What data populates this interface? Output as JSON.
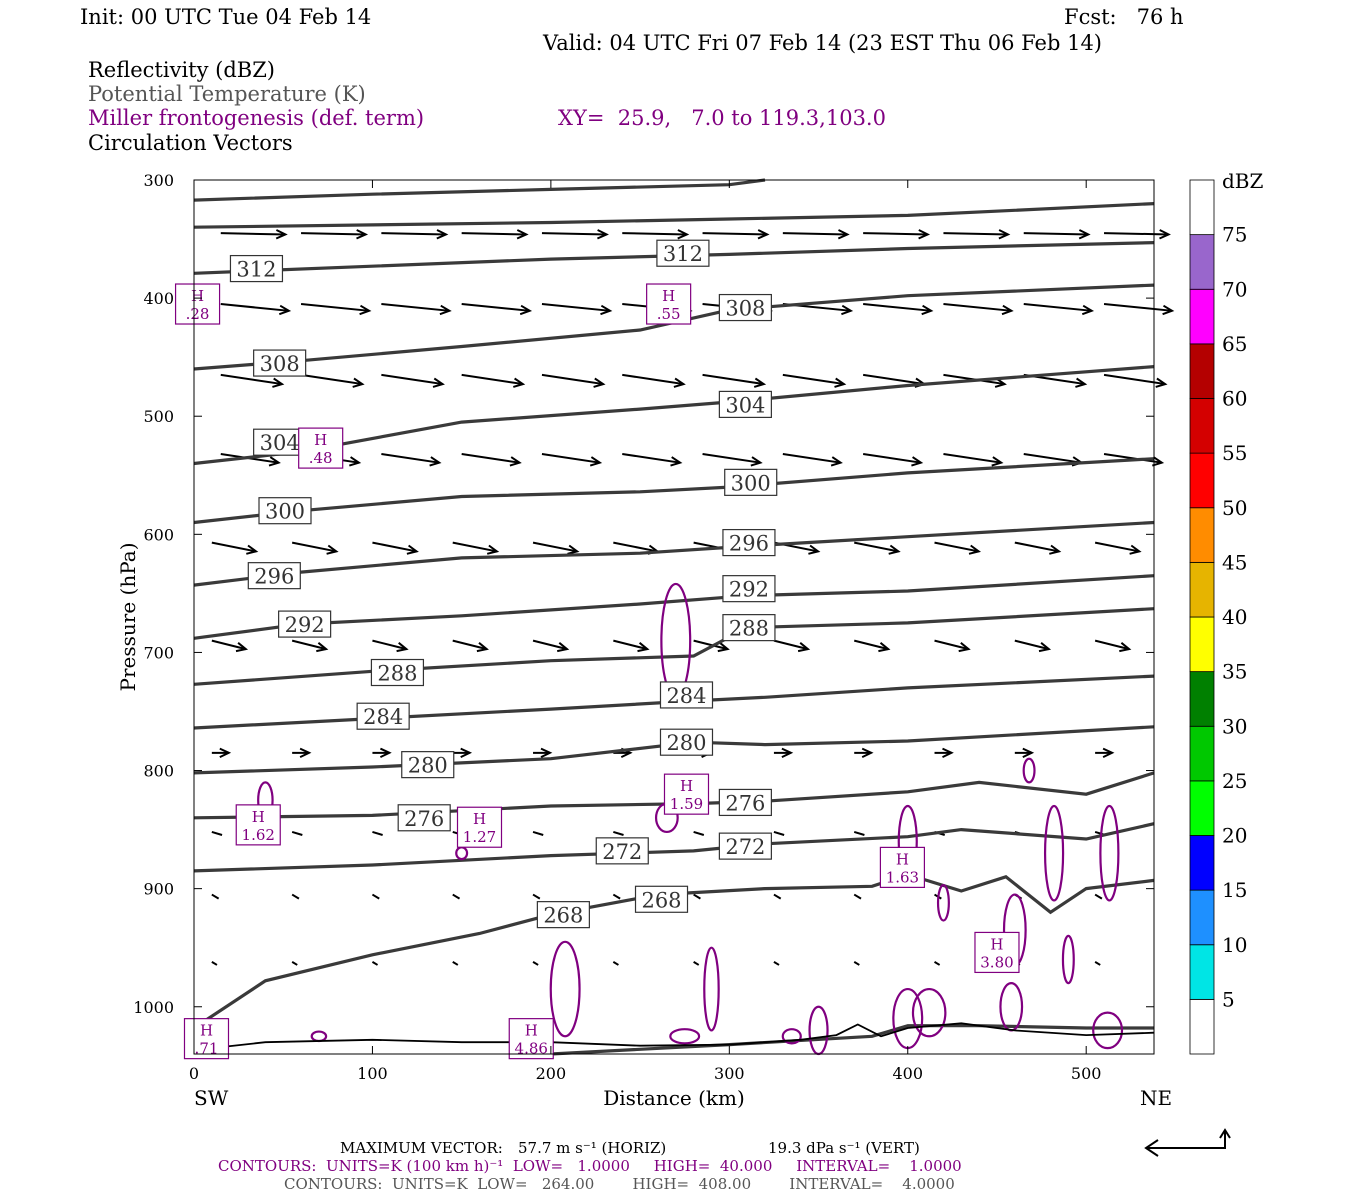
{
  "header": {
    "init": "Init: 00 UTC Tue 04 Feb 14",
    "fcst": "Fcst:   76 h",
    "valid": "Valid: 04 UTC Fri 07 Feb 14 (23 EST Thu 06 Feb 14)"
  },
  "legend": {
    "line1": "Reflectivity (dBZ)",
    "line2": "Potential Temperature (K)",
    "line3": "Miller frontogenesis (def. term)",
    "xy": "XY=  25.9,   7.0 to 119.3,103.0",
    "line4": "Circulation Vectors"
  },
  "colorbar": {
    "unit": "dBZ",
    "levels": [
      5,
      10,
      15,
      20,
      25,
      30,
      35,
      40,
      45,
      50,
      55,
      60,
      65,
      70,
      75
    ],
    "colors": [
      "#ffffff",
      "#00e5e5",
      "#1e90ff",
      "#0000ff",
      "#00ff00",
      "#00c800",
      "#008000",
      "#ffff00",
      "#e6b400",
      "#ff8c00",
      "#ff0000",
      "#d40000",
      "#b40000",
      "#ff00ff",
      "#9966cc",
      "#ffffff"
    ]
  },
  "footer": {
    "maxvec_label": "MAXIMUM VECTOR:",
    "maxvec_horiz": "57.7 m s⁻¹ (HORIZ)",
    "maxvec_vert": "19.3 dPa s⁻¹ (VERT)",
    "contours1": "CONTOURS:  UNITS=K (100 km h)⁻¹  LOW=   1.0000     HIGH=  40.000     INTERVAL=    1.0000",
    "contours2": "CONTOURS:  UNITS=K  LOW=   264.00        HIGH=  408.00        INTERVAL=    4.0000"
  },
  "chart_data": {
    "type": "cross-section",
    "xlabel": "Distance (km)",
    "ylabel": "Pressure (hPa)",
    "x_ticks": [
      0,
      100,
      200,
      300,
      400,
      500
    ],
    "y_ticks": [
      300,
      400,
      500,
      600,
      700,
      800,
      900,
      1000
    ],
    "xlim": [
      0,
      538
    ],
    "ylim": [
      300,
      1040
    ],
    "left_end": "SW",
    "right_end": "NE",
    "theta_contours": [
      {
        "level": 316,
        "labels": []
      },
      {
        "level": 312,
        "labels": [
          {
            "x": 35,
            "p": 375
          },
          {
            "x": 274,
            "p": 362
          }
        ]
      },
      {
        "level": 308,
        "labels": [
          {
            "x": 48,
            "p": 455
          },
          {
            "x": 309,
            "p": 408
          }
        ]
      },
      {
        "level": 304,
        "labels": [
          {
            "x": 48,
            "p": 522
          },
          {
            "x": 309,
            "p": 490
          }
        ]
      },
      {
        "level": 300,
        "labels": [
          {
            "x": 51,
            "p": 580
          },
          {
            "x": 312,
            "p": 556
          }
        ]
      },
      {
        "level": 296,
        "labels": [
          {
            "x": 45,
            "p": 635
          },
          {
            "x": 311,
            "p": 607
          }
        ]
      },
      {
        "level": 292,
        "labels": [
          {
            "x": 62,
            "p": 676
          },
          {
            "x": 311,
            "p": 646
          }
        ]
      },
      {
        "level": 288,
        "labels": [
          {
            "x": 114,
            "p": 717
          },
          {
            "x": 311,
            "p": 679
          }
        ]
      },
      {
        "level": 284,
        "labels": [
          {
            "x": 106,
            "p": 754
          },
          {
            "x": 276,
            "p": 736
          }
        ]
      },
      {
        "level": 280,
        "labels": [
          {
            "x": 131,
            "p": 795
          },
          {
            "x": 276,
            "p": 776
          }
        ]
      },
      {
        "level": 276,
        "labels": [
          {
            "x": 129,
            "p": 840
          },
          {
            "x": 309,
            "p": 827
          }
        ]
      },
      {
        "level": 272,
        "labels": [
          {
            "x": 240,
            "p": 868
          },
          {
            "x": 309,
            "p": 864
          }
        ]
      },
      {
        "level": 268,
        "labels": [
          {
            "x": 207,
            "p": 922
          },
          {
            "x": 262,
            "p": 909
          }
        ]
      }
    ],
    "frontogenesis_maxima": [
      {
        "x": 2,
        "p": 405,
        "label": "H",
        "value": ".28"
      },
      {
        "x": 71,
        "p": 527,
        "label": "H",
        "value": ".48"
      },
      {
        "x": 266,
        "p": 405,
        "label": "H",
        "value": ".55"
      },
      {
        "x": 36,
        "p": 846,
        "label": "H",
        "value": "1.62"
      },
      {
        "x": 160,
        "p": 848,
        "label": "H",
        "value": "1.27"
      },
      {
        "x": 276,
        "p": 820,
        "label": "H",
        "value": "1.59"
      },
      {
        "x": 397,
        "p": 882,
        "label": "H",
        "value": "1.63"
      },
      {
        "x": 450,
        "p": 954,
        "label": "H",
        "value": "3.80"
      },
      {
        "x": 189,
        "p": 1027,
        "label": "H",
        "value": "4.86"
      },
      {
        "x": 7,
        "p": 1027,
        "label": "H",
        "value": ".71"
      }
    ]
  }
}
